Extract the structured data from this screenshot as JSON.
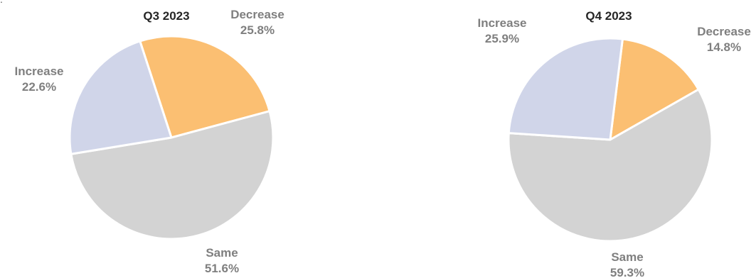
{
  "chart_data": [
    {
      "type": "pie",
      "title": "Q3 2023",
      "slices": [
        {
          "name": "Decrease",
          "value": 25.8,
          "label": "25.8%",
          "color": "#FBBF72"
        },
        {
          "name": "Same",
          "value": 51.6,
          "label": "51.6%",
          "color": "#D3D3D3"
        },
        {
          "name": "Increase",
          "value": 22.6,
          "label": "22.6%",
          "color": "#D0D5E9"
        }
      ],
      "start_angle_deg": -18
    },
    {
      "type": "pie",
      "title": "Q4 2023",
      "slices": [
        {
          "name": "Decrease",
          "value": 14.8,
          "label": "14.8%",
          "color": "#FBBF72"
        },
        {
          "name": "Same",
          "value": 59.3,
          "label": "59.3%",
          "color": "#D3D3D3"
        },
        {
          "name": "Increase",
          "value": 25.9,
          "label": "25.9%",
          "color": "#D0D5E9"
        }
      ],
      "start_angle_deg": 7
    }
  ],
  "stroke_color": "#ffffff"
}
